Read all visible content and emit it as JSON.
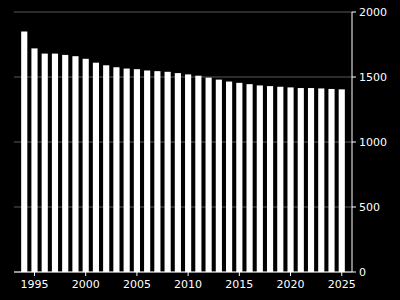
{
  "chart_data": {
    "type": "bar",
    "x": [
      1994,
      1995,
      1996,
      1997,
      1998,
      1999,
      2000,
      2001,
      2002,
      2003,
      2004,
      2005,
      2006,
      2007,
      2008,
      2009,
      2010,
      2011,
      2012,
      2013,
      2014,
      2015,
      2016,
      2017,
      2018,
      2019,
      2020,
      2021,
      2022,
      2023,
      2024,
      2025
    ],
    "values": [
      1850,
      1720,
      1680,
      1680,
      1670,
      1660,
      1640,
      1610,
      1590,
      1575,
      1565,
      1560,
      1550,
      1545,
      1540,
      1530,
      1520,
      1510,
      1495,
      1480,
      1465,
      1455,
      1445,
      1435,
      1430,
      1425,
      1420,
      1415,
      1415,
      1412,
      1408,
      1405
    ],
    "color": "#ffffff",
    "xlim": [
      1993.0,
      2026.0
    ],
    "xticks": [
      1995,
      2000,
      2005,
      2010,
      2015,
      2020,
      2025
    ],
    "ylim": [
      0,
      2000
    ],
    "yticks": [
      0,
      500,
      1000,
      1500,
      2000
    ],
    "grid": true
  }
}
